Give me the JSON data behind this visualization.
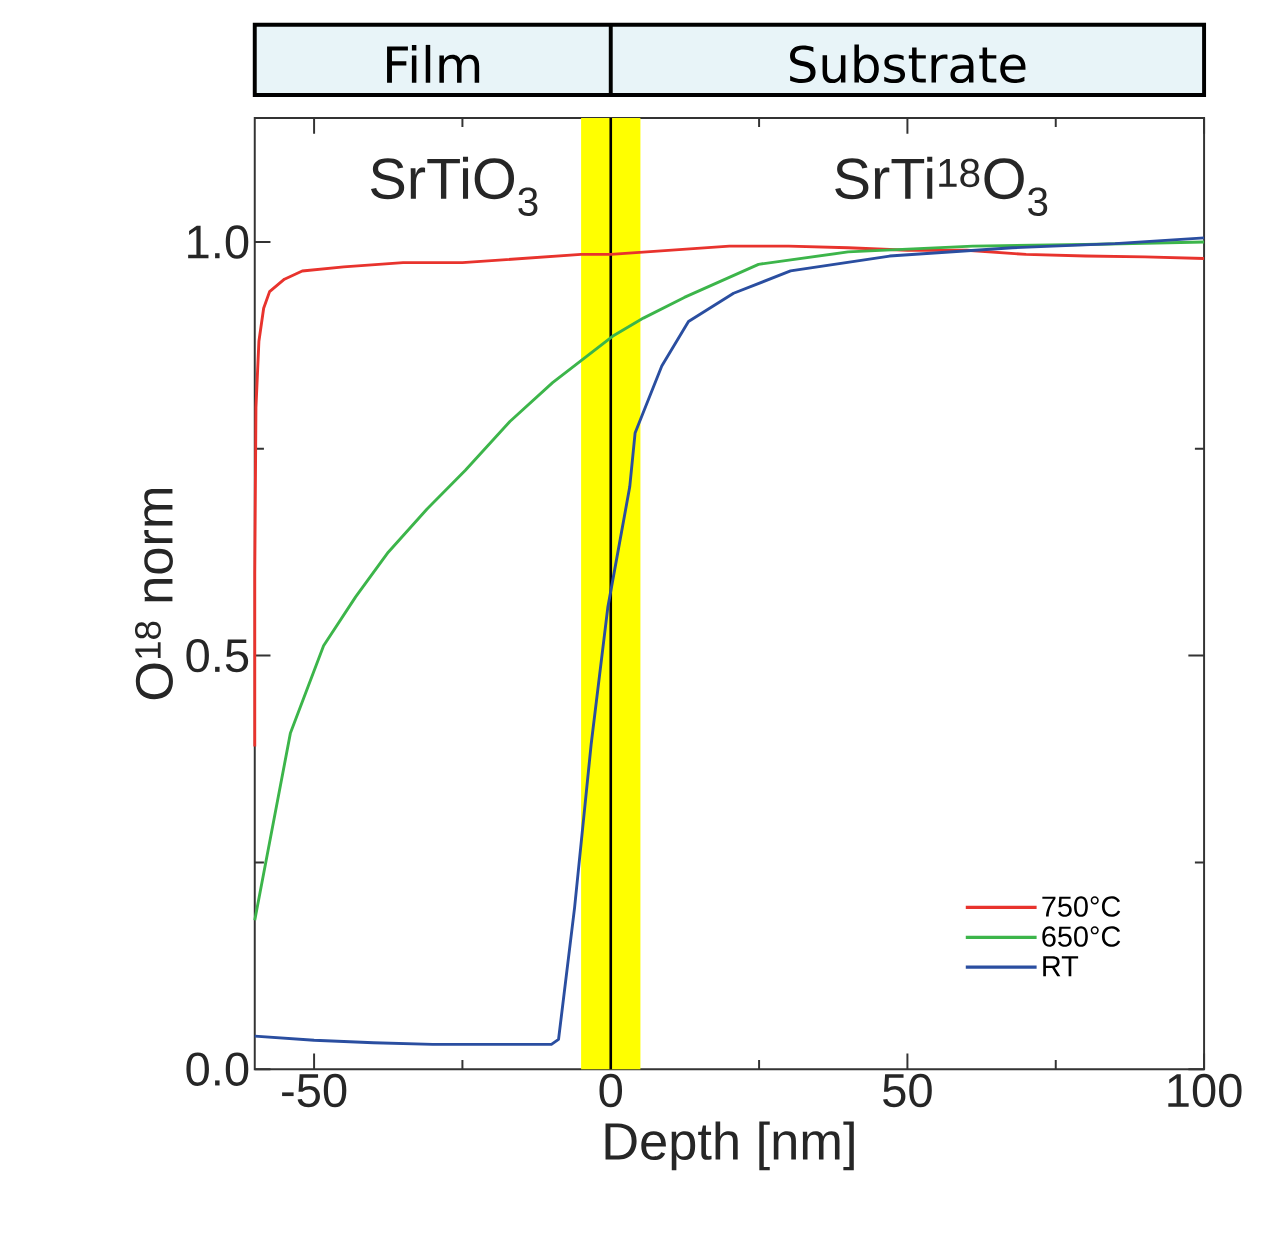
{
  "chart_data": {
    "type": "line",
    "xlabel": "Depth [nm]",
    "ylabel": "O$^{18}$ norm",
    "xlim": [
      -60,
      100
    ],
    "ylim": [
      0,
      1.15
    ],
    "xticks": [
      -50,
      0,
      50,
      100
    ],
    "yticks": [
      {
        "value": 0,
        "label": "0.0"
      },
      {
        "value": 0.5,
        "label": "0.5"
      },
      {
        "value": 1,
        "label": "1.0"
      }
    ],
    "legend": "bottom right",
    "annotations": [
      "Film",
      "Substrate",
      "SrTiO$_{3}$",
      "SrTi$^{18}$O$_{3}$"
    ],
    "bands": [
      {
        "axis": "x",
        "from": -5,
        "to": 5,
        "color": "#ffff00"
      }
    ],
    "ref_lines": [
      {
        "axis": "x",
        "value": 0,
        "color": "#000000"
      }
    ],
    "series": [
      {
        "name": "750°C",
        "color": "#e8332d",
        "x": [
          -60,
          -60,
          -59.8,
          -59.3,
          -58.5,
          -57.5,
          -55,
          -52,
          -45,
          -35,
          -25,
          -15,
          -5,
          0,
          10,
          20,
          30,
          40,
          50,
          60,
          70,
          80,
          90,
          100
        ],
        "values": [
          0.39,
          0.6,
          0.8,
          0.88,
          0.92,
          0.94,
          0.955,
          0.965,
          0.97,
          0.975,
          0.975,
          0.98,
          0.985,
          0.985,
          0.99,
          0.995,
          0.995,
          0.993,
          0.99,
          0.99,
          0.985,
          0.983,
          0.982,
          0.98
        ]
      },
      {
        "name": "650°C",
        "color": "#3cb54a",
        "x": [
          -60,
          -54,
          -48.4,
          -43,
          -37.5,
          -31,
          -24.5,
          -17,
          -9.8,
          0.3,
          5.5,
          12.4,
          24.9,
          40,
          61,
          80,
          100
        ],
        "values": [
          0.18,
          0.406,
          0.512,
          0.571,
          0.625,
          0.677,
          0.724,
          0.783,
          0.83,
          0.886,
          0.908,
          0.933,
          0.973,
          0.988,
          0.995,
          0.997,
          1.0
        ]
      },
      {
        "name": "RT",
        "color": "#2a4ea0",
        "x": [
          -60,
          -50,
          -40,
          -30,
          -20,
          -10,
          -8.8,
          -6.1,
          -3.3,
          -0.5,
          3.2,
          4.1,
          8.6,
          13.1,
          20.7,
          30.3,
          47,
          67.7,
          85,
          100
        ],
        "values": [
          0.04,
          0.035,
          0.032,
          0.03,
          0.03,
          0.03,
          0.036,
          0.195,
          0.393,
          0.558,
          0.704,
          0.769,
          0.85,
          0.904,
          0.938,
          0.965,
          0.983,
          0.993,
          0.998,
          1.005
        ]
      }
    ]
  }
}
